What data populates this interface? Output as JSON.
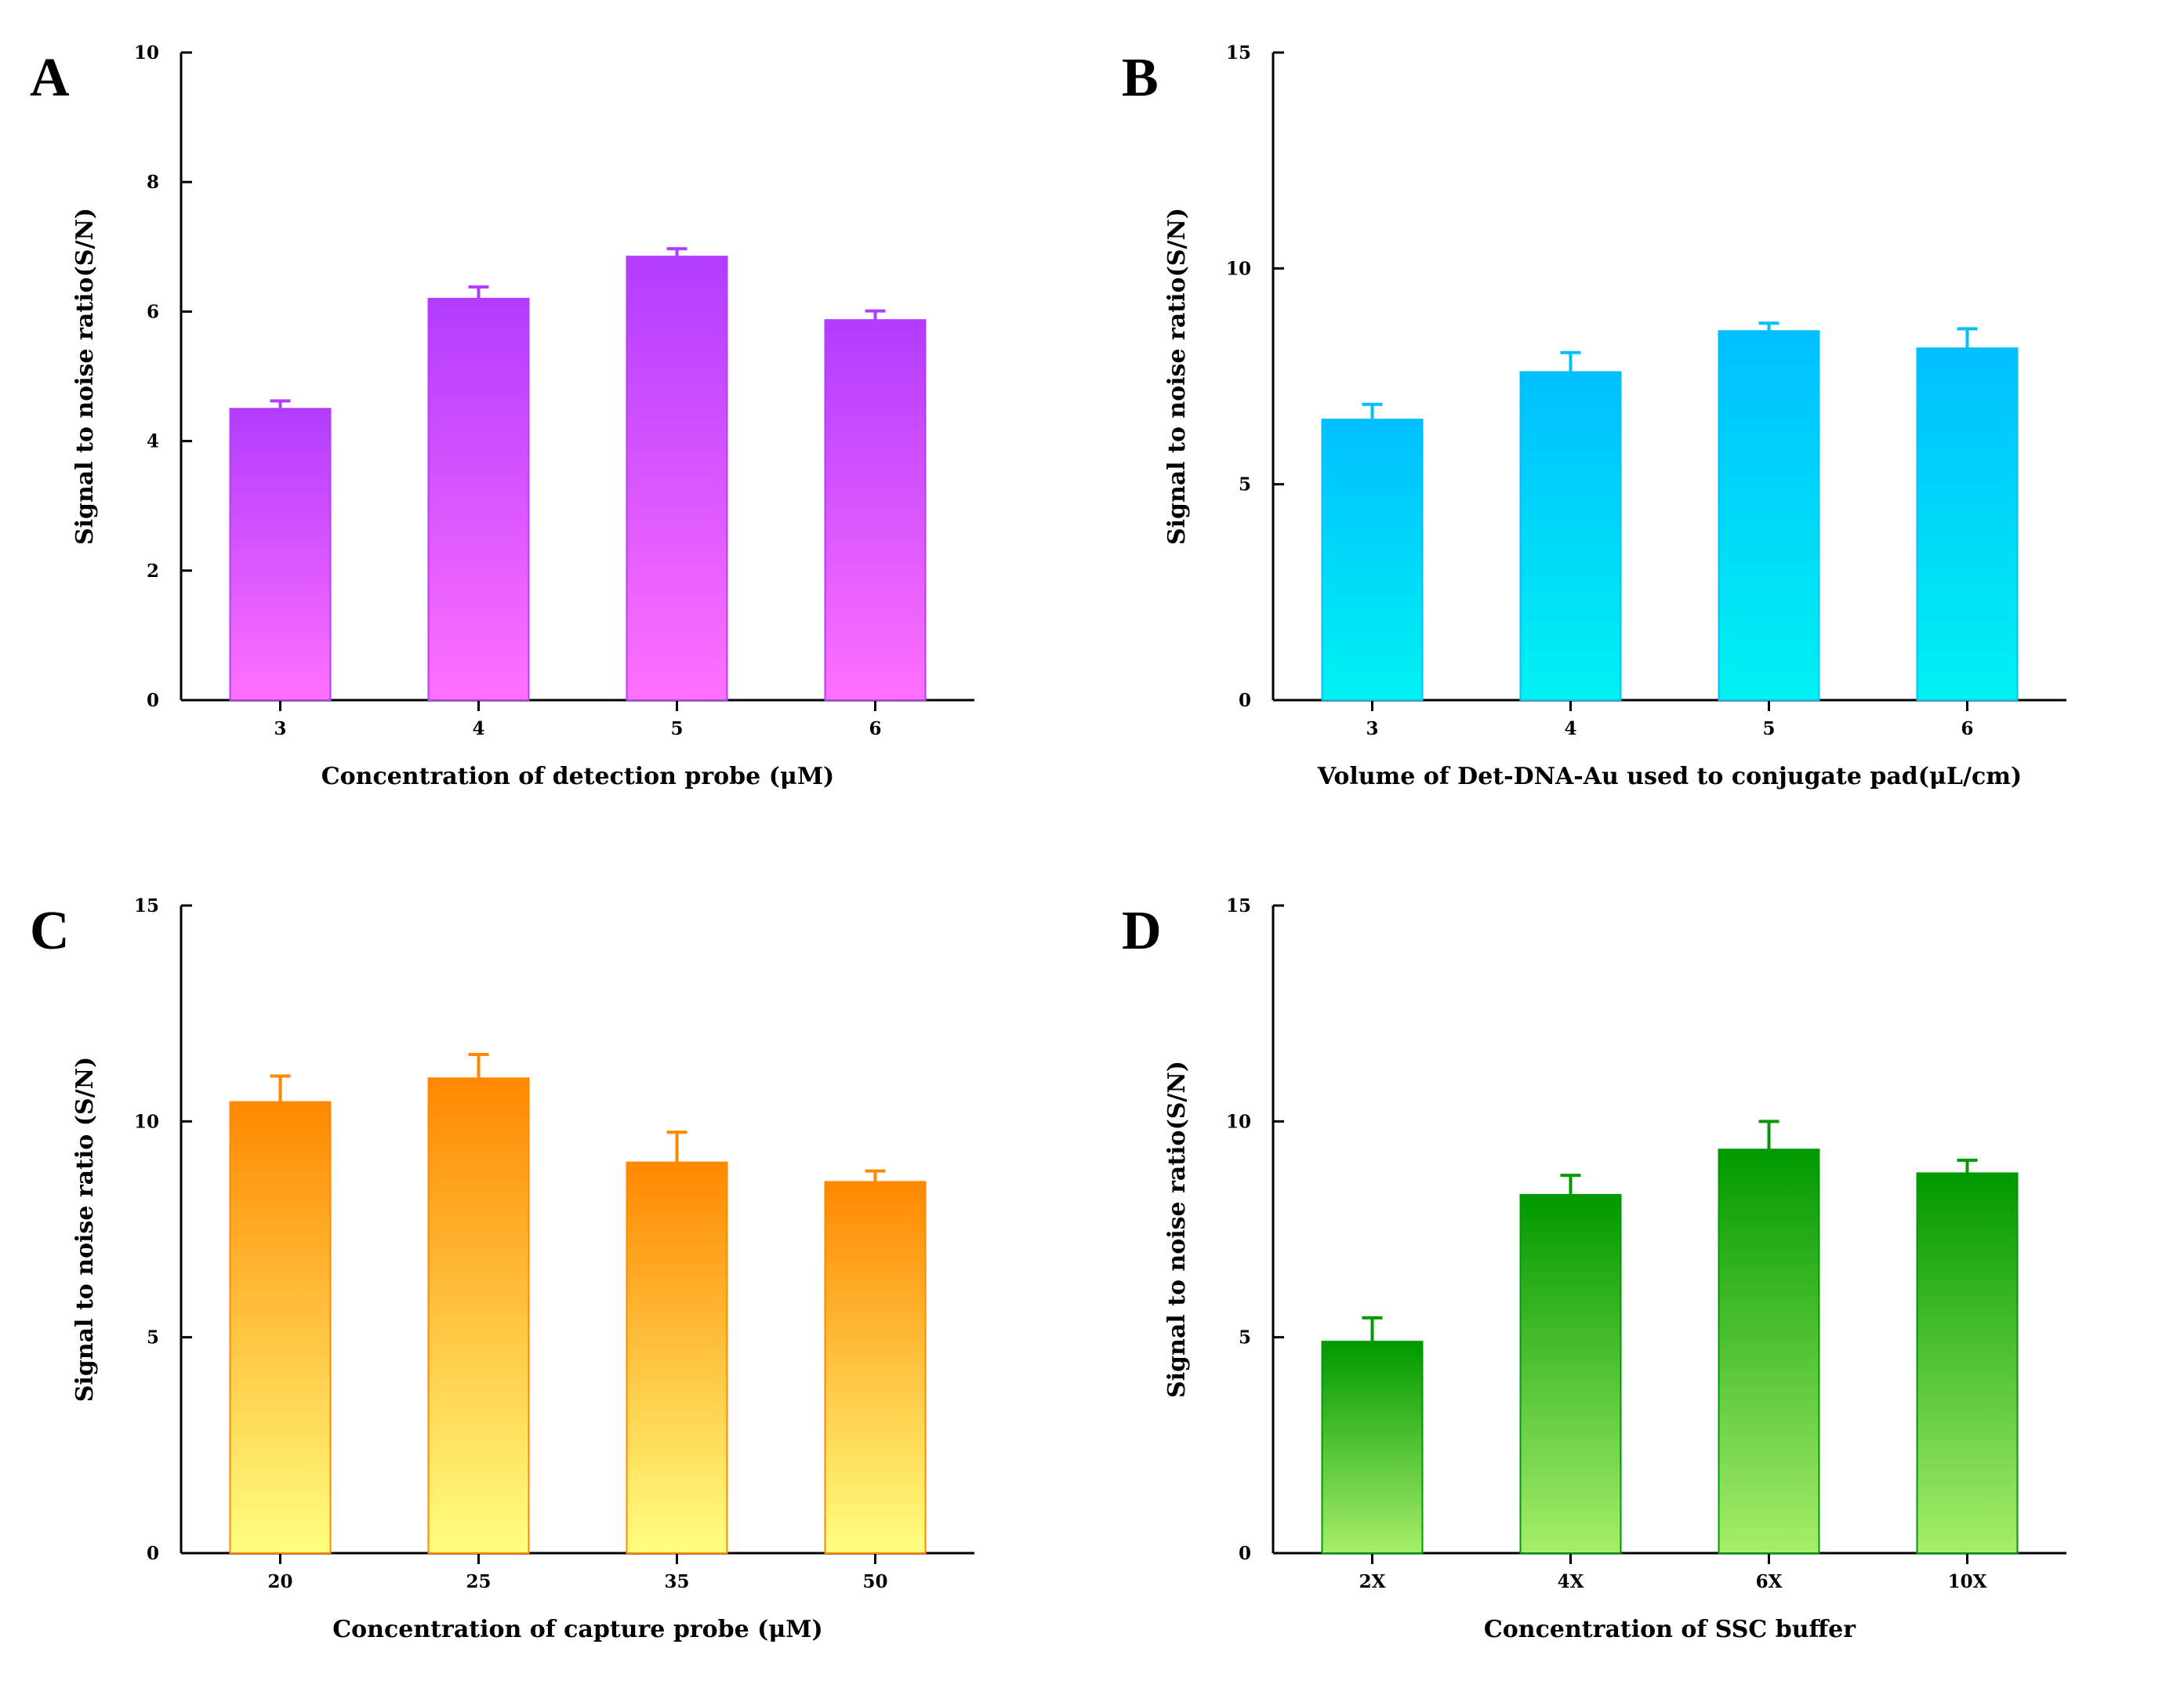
{
  "figure": {
    "panels": [
      "A",
      "B",
      "C",
      "D"
    ]
  },
  "chart_data": [
    {
      "type": "bar",
      "panel": "A",
      "title": "",
      "xlabel": "Concentration of detection probe (μM)",
      "ylabel": "Signal to noise ratio(S/N)",
      "categories": [
        "3",
        "4",
        "5",
        "6"
      ],
      "values": [
        4.5,
        6.2,
        6.85,
        5.87
      ],
      "errors": [
        0.12,
        0.18,
        0.12,
        0.14
      ],
      "ylim": [
        0,
        10
      ],
      "yticks": [
        "0",
        "2",
        "4",
        "6",
        "8",
        "10"
      ],
      "colors": {
        "top": "#b23cff",
        "bottom": "#ff70ff",
        "error": "#b23cff"
      }
    },
    {
      "type": "bar",
      "panel": "B",
      "title": "",
      "xlabel": "Volume of Det-DNA-Au used to conjugate pad(μL/cm)",
      "ylabel": "Signal to noise ratio(S/N)",
      "categories": [
        "3",
        "4",
        "5",
        "6"
      ],
      "values": [
        6.5,
        7.6,
        8.55,
        8.15
      ],
      "errors": [
        0.35,
        0.45,
        0.18,
        0.45
      ],
      "ylim": [
        0,
        15
      ],
      "yticks": [
        "0",
        "5",
        "10",
        "15"
      ],
      "colors": {
        "top": "#00bfff",
        "bottom": "#00f2f2",
        "error": "#00bfff"
      }
    },
    {
      "type": "bar",
      "panel": "C",
      "title": "",
      "xlabel": "Concentration of capture probe (μM)",
      "ylabel": "Signal to noise ratio (S/N)",
      "categories": [
        "20",
        "25",
        "35",
        "50"
      ],
      "values": [
        10.45,
        11.0,
        9.05,
        8.6
      ],
      "errors": [
        0.6,
        0.55,
        0.7,
        0.25
      ],
      "ylim": [
        0,
        15
      ],
      "yticks": [
        "0",
        "5",
        "10",
        "15"
      ],
      "colors": {
        "top": "#ff8800",
        "bottom": "#ffff80",
        "error": "#ff8800"
      }
    },
    {
      "type": "bar",
      "panel": "D",
      "title": "",
      "xlabel": "Concentration of SSC buffer",
      "ylabel": "Signal to noise ratio(S/N)",
      "categories": [
        "2X",
        "4X",
        "6X",
        "10X"
      ],
      "values": [
        4.9,
        8.3,
        9.35,
        8.8
      ],
      "errors": [
        0.55,
        0.45,
        0.65,
        0.3
      ],
      "ylim": [
        0,
        15
      ],
      "yticks": [
        "0",
        "5",
        "10",
        "15"
      ],
      "colors": {
        "top": "#009900",
        "bottom": "#a6ee6a",
        "error": "#009900"
      }
    }
  ]
}
